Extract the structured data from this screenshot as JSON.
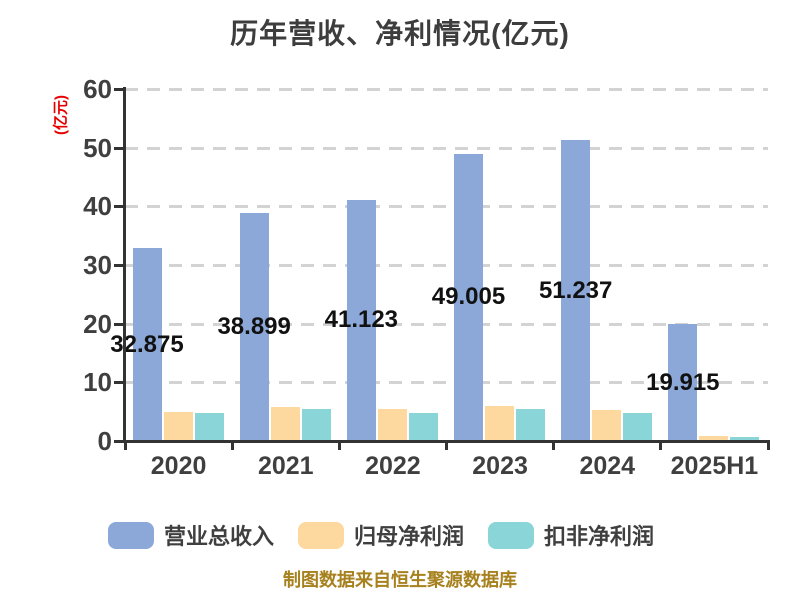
{
  "caption": "制图数据来自恒生聚源数据库",
  "colors": {
    "background": "#ffffff",
    "axis": "#333333",
    "grid": "#d3d3d3",
    "title_text": "#3d3d3d",
    "tick_text": "#3f3f3f",
    "value_label_text": "#111111",
    "unit_label_text": "#e60000",
    "caption_text": "#a6811d",
    "series_blue": "#8ca8d8",
    "series_orange": "#fdd99f",
    "series_teal": "#89d5d7"
  },
  "chart_data": {
    "type": "bar",
    "title": "历年营收、净利情况(亿元)",
    "ylabel": "(亿元)",
    "xlabel": "",
    "categories": [
      "2020",
      "2021",
      "2022",
      "2023",
      "2024",
      "2025H1"
    ],
    "series": [
      {
        "name": "营业总收入",
        "color": "#8ca8d8",
        "values": [
          32.875,
          38.899,
          41.123,
          49.005,
          51.237,
          19.915
        ],
        "labels": [
          "32.875",
          "38.899",
          "41.123",
          "49.005",
          "51.237",
          "19.915"
        ]
      },
      {
        "name": "归母净利润",
        "color": "#fdd99f",
        "values": [
          5.0,
          5.8,
          5.4,
          6.0,
          5.3,
          0.9
        ]
      },
      {
        "name": "扣非净利润",
        "color": "#89d5d7",
        "values": [
          4.7,
          5.5,
          4.8,
          5.4,
          4.8,
          0.7
        ]
      }
    ],
    "ylim": [
      0,
      60
    ],
    "ytick_step": 10,
    "yticks": [
      0,
      10,
      20,
      30,
      40,
      50,
      60
    ],
    "grid": "horizontal-dashed",
    "legend_position": "bottom"
  }
}
